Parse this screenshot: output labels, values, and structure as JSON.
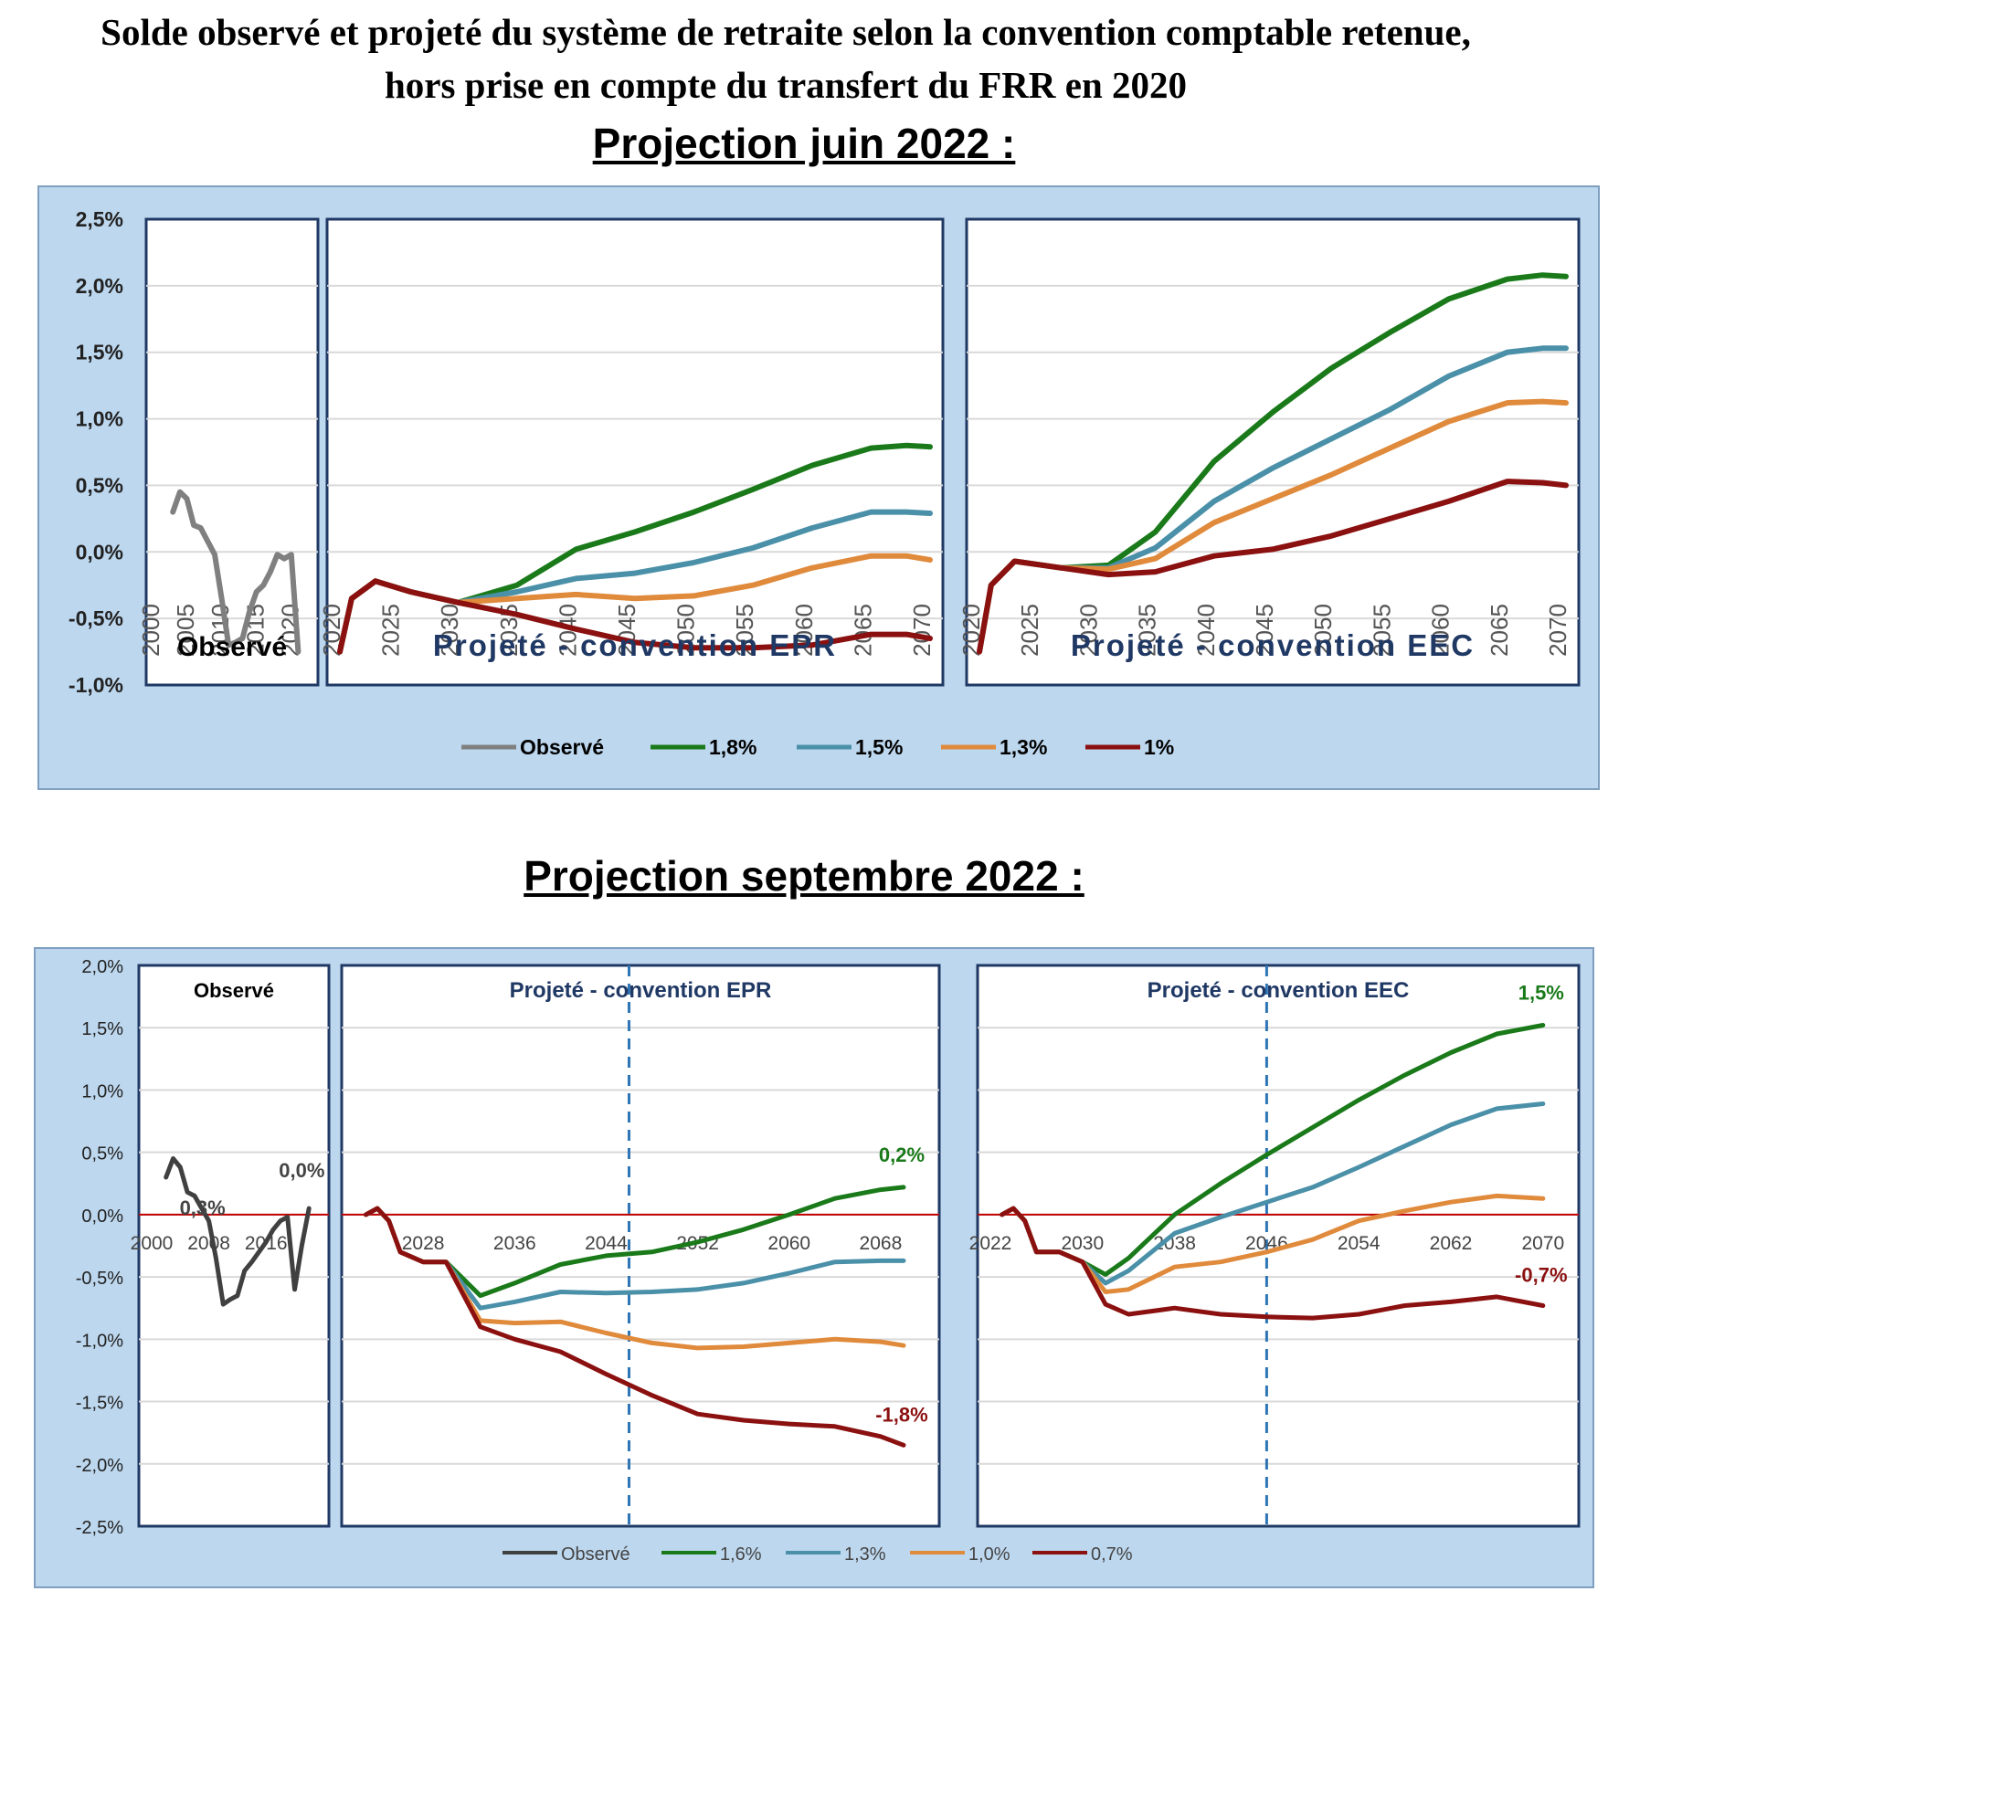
{
  "page": {
    "title_line1": "Solde observé et projeté du système de retraite selon la convention comptable retenue,",
    "title_line2": "hors prise en compte du transfert du FRR en 2020"
  },
  "colors": {
    "observed_top": "#808080",
    "observed_bottom": "#404040",
    "green": "#1a7a1a",
    "blue": "#4a90a8",
    "orange": "#e08a3c",
    "darkred": "#8b1010",
    "panel_bg": "#bdd7ee",
    "panel_border": "#1f3864",
    "zero_line": "#c00000",
    "dashed_line": "#2e75b6"
  },
  "chart_data": [
    {
      "type": "line",
      "title": "Projection juin 2022 :",
      "ylim": [
        -1.0,
        2.5
      ],
      "yticks": [
        "2,5%",
        "2,0%",
        "1,5%",
        "1,0%",
        "0,5%",
        "0,0%",
        "-0,5%",
        "-1,0%"
      ],
      "grid": true,
      "legend_position": "bottom",
      "legend": [
        "Observé",
        "1,8%",
        "1,5%",
        "1,3%",
        "1%"
      ],
      "panels": [
        {
          "label": "Observé",
          "xlim": [
            2000,
            2021
          ],
          "xticks": [
            "2000",
            "2005",
            "2010",
            "2015",
            "2020"
          ],
          "series": [
            {
              "name": "Observé",
              "x": [
                2002,
                2003,
                2004,
                2005,
                2006,
                2007,
                2008,
                2009,
                2010,
                2011,
                2012,
                2013,
                2014,
                2015,
                2016,
                2017,
                2018,
                2019,
                2020
              ],
              "y": [
                0.3,
                0.45,
                0.4,
                0.2,
                0.18,
                0.08,
                -0.02,
                -0.35,
                -0.7,
                -0.68,
                -0.65,
                -0.45,
                -0.3,
                -0.25,
                -0.15,
                -0.02,
                -0.05,
                -0.02,
                -0.75
              ]
            }
          ]
        },
        {
          "label": "Projeté - convention EPR",
          "xlim": [
            2020,
            2070
          ],
          "xticks": [
            "2020",
            "2025",
            "2030",
            "2035",
            "2040",
            "2045",
            "2050",
            "2055",
            "2060",
            "2065",
            "2070"
          ],
          "series": [
            {
              "name": "1,8%",
              "x": [
                2020,
                2021,
                2023,
                2026,
                2030,
                2035,
                2040,
                2045,
                2050,
                2055,
                2060,
                2065,
                2068,
                2070
              ],
              "y": [
                -0.75,
                -0.35,
                -0.22,
                -0.3,
                -0.38,
                -0.25,
                0.02,
                0.15,
                0.3,
                0.47,
                0.65,
                0.78,
                0.8,
                0.79
              ]
            },
            {
              "name": "1,5%",
              "x": [
                2020,
                2021,
                2023,
                2026,
                2030,
                2035,
                2040,
                2045,
                2050,
                2055,
                2060,
                2065,
                2068,
                2070
              ],
              "y": [
                -0.75,
                -0.35,
                -0.22,
                -0.3,
                -0.38,
                -0.3,
                -0.2,
                -0.16,
                -0.08,
                0.03,
                0.18,
                0.3,
                0.3,
                0.29
              ]
            },
            {
              "name": "1,3%",
              "x": [
                2020,
                2021,
                2023,
                2026,
                2030,
                2035,
                2040,
                2045,
                2050,
                2055,
                2060,
                2065,
                2068,
                2070
              ],
              "y": [
                -0.75,
                -0.35,
                -0.22,
                -0.3,
                -0.38,
                -0.35,
                -0.32,
                -0.35,
                -0.33,
                -0.25,
                -0.12,
                -0.03,
                -0.03,
                -0.06
              ]
            },
            {
              "name": "1%",
              "x": [
                2020,
                2021,
                2023,
                2026,
                2030,
                2035,
                2040,
                2045,
                2050,
                2055,
                2060,
                2065,
                2068,
                2070
              ],
              "y": [
                -0.75,
                -0.35,
                -0.22,
                -0.3,
                -0.38,
                -0.47,
                -0.58,
                -0.68,
                -0.72,
                -0.72,
                -0.7,
                -0.62,
                -0.62,
                -0.65
              ]
            }
          ]
        },
        {
          "label": "Projeté - convention EEC",
          "xlim": [
            2020,
            2070
          ],
          "xticks": [
            "2020",
            "2025",
            "2030",
            "2035",
            "2040",
            "2045",
            "2050",
            "2055",
            "2060",
            "2065",
            "2070"
          ],
          "series": [
            {
              "name": "1,8%",
              "x": [
                2020,
                2021,
                2023,
                2027,
                2031,
                2035,
                2040,
                2045,
                2050,
                2055,
                2060,
                2065,
                2068,
                2070
              ],
              "y": [
                -0.75,
                -0.25,
                -0.07,
                -0.12,
                -0.1,
                0.15,
                0.68,
                1.05,
                1.38,
                1.65,
                1.9,
                2.05,
                2.08,
                2.07
              ]
            },
            {
              "name": "1,5%",
              "x": [
                2020,
                2021,
                2023,
                2027,
                2031,
                2035,
                2040,
                2045,
                2050,
                2055,
                2060,
                2065,
                2068,
                2070
              ],
              "y": [
                -0.75,
                -0.25,
                -0.07,
                -0.12,
                -0.12,
                0.03,
                0.38,
                0.63,
                0.85,
                1.07,
                1.32,
                1.5,
                1.53,
                1.53
              ]
            },
            {
              "name": "1,3%",
              "x": [
                2020,
                2021,
                2023,
                2027,
                2031,
                2035,
                2040,
                2045,
                2050,
                2055,
                2060,
                2065,
                2068,
                2070
              ],
              "y": [
                -0.75,
                -0.25,
                -0.07,
                -0.12,
                -0.13,
                -0.05,
                0.22,
                0.4,
                0.58,
                0.78,
                0.98,
                1.12,
                1.13,
                1.12
              ]
            },
            {
              "name": "1%",
              "x": [
                2020,
                2021,
                2023,
                2027,
                2031,
                2035,
                2040,
                2045,
                2050,
                2055,
                2060,
                2065,
                2068,
                2070
              ],
              "y": [
                -0.75,
                -0.25,
                -0.07,
                -0.12,
                -0.17,
                -0.15,
                -0.03,
                0.02,
                0.12,
                0.25,
                0.38,
                0.53,
                0.52,
                0.5
              ]
            }
          ]
        }
      ]
    },
    {
      "type": "line",
      "title": "Projection septembre 2022 :",
      "ylim": [
        -2.5,
        2.0
      ],
      "yticks": [
        "2,0%",
        "1,5%",
        "1,0%",
        "0,5%",
        "0,0%",
        "-0,5%",
        "-1,0%",
        "-1,5%",
        "-2,0%",
        "-2,5%"
      ],
      "grid": true,
      "legend_position": "bottom",
      "legend": [
        "Observé",
        "1,6%",
        "1,3%",
        "1,0%",
        "0,7%"
      ],
      "panels": [
        {
          "label": "Observé",
          "xlim": [
            2000,
            2023
          ],
          "xticks": [
            "2000",
            "2008",
            "2016"
          ],
          "annotations": [
            "0,3%",
            "0,0%"
          ],
          "series": [
            {
              "name": "Observé",
              "x": [
                2002,
                2003,
                2004,
                2005,
                2006,
                2007,
                2008,
                2009,
                2010,
                2011,
                2012,
                2013,
                2014,
                2015,
                2016,
                2017,
                2018,
                2019,
                2020,
                2021,
                2022
              ],
              "y": [
                0.3,
                0.45,
                0.38,
                0.18,
                0.15,
                0.05,
                -0.05,
                -0.35,
                -0.72,
                -0.68,
                -0.65,
                -0.45,
                -0.38,
                -0.3,
                -0.22,
                -0.12,
                -0.05,
                -0.02,
                -0.6,
                -0.25,
                0.05
              ]
            }
          ]
        },
        {
          "label": "Projeté - convention EPR",
          "xlim": [
            2022,
            2072
          ],
          "xticks": [
            "2028",
            "2036",
            "2044",
            "2052",
            "2060",
            "2068"
          ],
          "dashed_x": 2046,
          "annotations": [
            "0,2%",
            "-1,8%"
          ],
          "series": [
            {
              "name": "1,6%",
              "x": [
                2023,
                2024,
                2025,
                2026,
                2028,
                2030,
                2033,
                2036,
                2040,
                2044,
                2048,
                2052,
                2056,
                2060,
                2064,
                2068,
                2070
              ],
              "y": [
                0.0,
                0.05,
                -0.05,
                -0.3,
                -0.38,
                -0.38,
                -0.65,
                -0.55,
                -0.4,
                -0.33,
                -0.3,
                -0.22,
                -0.12,
                0.0,
                0.13,
                0.2,
                0.22
              ]
            },
            {
              "name": "1,3%",
              "x": [
                2023,
                2024,
                2025,
                2026,
                2028,
                2030,
                2033,
                2036,
                2040,
                2044,
                2048,
                2052,
                2056,
                2060,
                2064,
                2068,
                2070
              ],
              "y": [
                0.0,
                0.05,
                -0.05,
                -0.3,
                -0.38,
                -0.38,
                -0.75,
                -0.7,
                -0.62,
                -0.63,
                -0.62,
                -0.6,
                -0.55,
                -0.47,
                -0.38,
                -0.37,
                -0.37
              ]
            },
            {
              "name": "1,0%",
              "x": [
                2023,
                2024,
                2025,
                2026,
                2028,
                2030,
                2033,
                2036,
                2040,
                2044,
                2048,
                2052,
                2056,
                2060,
                2064,
                2068,
                2070
              ],
              "y": [
                0.0,
                0.05,
                -0.05,
                -0.3,
                -0.38,
                -0.38,
                -0.85,
                -0.87,
                -0.86,
                -0.95,
                -1.03,
                -1.07,
                -1.06,
                -1.03,
                -1.0,
                -1.02,
                -1.05
              ]
            },
            {
              "name": "0,7%",
              "x": [
                2023,
                2024,
                2025,
                2026,
                2028,
                2030,
                2033,
                2036,
                2040,
                2044,
                2048,
                2052,
                2056,
                2060,
                2064,
                2068,
                2070
              ],
              "y": [
                0.0,
                0.05,
                -0.05,
                -0.3,
                -0.38,
                -0.38,
                -0.9,
                -1.0,
                -1.1,
                -1.28,
                -1.45,
                -1.6,
                -1.65,
                -1.68,
                -1.7,
                -1.78,
                -1.85
              ]
            }
          ]
        },
        {
          "label": "Projeté - convention EEC",
          "xlim": [
            2022,
            2072
          ],
          "xticks": [
            "2022",
            "2030",
            "2038",
            "2046",
            "2054",
            "2062",
            "2070"
          ],
          "dashed_x": 2046,
          "annotations": [
            "1,5%",
            "-0,7%"
          ],
          "series": [
            {
              "name": "1,6%",
              "x": [
                2023,
                2024,
                2025,
                2026,
                2028,
                2030,
                2032,
                2034,
                2038,
                2042,
                2046,
                2050,
                2054,
                2058,
                2062,
                2066,
                2070
              ],
              "y": [
                0.0,
                0.05,
                -0.05,
                -0.3,
                -0.3,
                -0.38,
                -0.48,
                -0.35,
                0.0,
                0.25,
                0.48,
                0.7,
                0.92,
                1.12,
                1.3,
                1.45,
                1.52
              ]
            },
            {
              "name": "1,3%",
              "x": [
                2023,
                2024,
                2025,
                2026,
                2028,
                2030,
                2032,
                2034,
                2038,
                2042,
                2046,
                2050,
                2054,
                2058,
                2062,
                2066,
                2070
              ],
              "y": [
                0.0,
                0.05,
                -0.05,
                -0.3,
                -0.3,
                -0.38,
                -0.55,
                -0.45,
                -0.15,
                -0.02,
                0.1,
                0.22,
                0.38,
                0.55,
                0.72,
                0.85,
                0.89
              ]
            },
            {
              "name": "1,0%",
              "x": [
                2023,
                2024,
                2025,
                2026,
                2028,
                2030,
                2032,
                2034,
                2038,
                2042,
                2046,
                2050,
                2054,
                2058,
                2062,
                2066,
                2070
              ],
              "y": [
                0.0,
                0.05,
                -0.05,
                -0.3,
                -0.3,
                -0.38,
                -0.62,
                -0.6,
                -0.42,
                -0.38,
                -0.3,
                -0.2,
                -0.05,
                0.03,
                0.1,
                0.15,
                0.13
              ]
            },
            {
              "name": "0,7%",
              "x": [
                2023,
                2024,
                2025,
                2026,
                2028,
                2030,
                2032,
                2034,
                2038,
                2042,
                2046,
                2050,
                2054,
                2058,
                2062,
                2066,
                2070
              ],
              "y": [
                0.0,
                0.05,
                -0.05,
                -0.3,
                -0.3,
                -0.38,
                -0.72,
                -0.8,
                -0.75,
                -0.8,
                -0.82,
                -0.83,
                -0.8,
                -0.73,
                -0.7,
                -0.66,
                -0.73
              ]
            }
          ]
        }
      ]
    }
  ]
}
